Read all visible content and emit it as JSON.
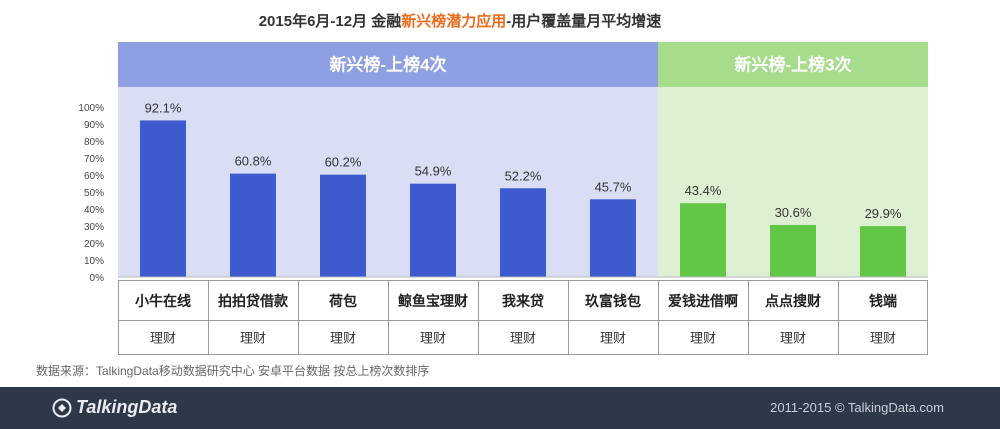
{
  "title": {
    "prefix": "2015年6月-12月  金融",
    "highlight": "新兴榜潜力应用",
    "suffix": "-用户覆盖量月平均增速"
  },
  "chart_data": {
    "type": "bar",
    "title": "2015年6月-12月  金融新兴榜潜力应用-用户覆盖量月平均增速",
    "categories": [
      "小牛在线",
      "拍拍贷借款",
      "荷包",
      "鲸鱼宝理财",
      "我来贷",
      "玖富钱包",
      "爱钱进借啊",
      "点点搜财",
      "钱端"
    ],
    "sub_labels": [
      "理财",
      "理财",
      "理财",
      "理财",
      "理财",
      "理财",
      "理财",
      "理财",
      "理财"
    ],
    "values": [
      92.1,
      60.8,
      60.2,
      54.9,
      52.2,
      45.7,
      43.4,
      30.6,
      29.9
    ],
    "value_labels": [
      "92.1%",
      "60.8%",
      "60.2%",
      "54.9%",
      "52.2%",
      "45.7%",
      "43.4%",
      "30.6%",
      "29.9%"
    ],
    "yticks": [
      0,
      10,
      20,
      30,
      40,
      50,
      60,
      70,
      80,
      90,
      100
    ],
    "ytick_labels": [
      "0%",
      "10%",
      "20%",
      "30%",
      "40%",
      "50%",
      "60%",
      "70%",
      "80%",
      "90%",
      "100%"
    ],
    "ylim": [
      0,
      100
    ],
    "groups": [
      {
        "label": "新兴榜-上榜4次",
        "count": 6,
        "bar_color": "#3d5bcf",
        "header_color": "#8f9fe3",
        "panel_color": "#d9def5"
      },
      {
        "label": "新兴榜-上榜3次",
        "count": 3,
        "bar_color": "#62c746",
        "header_color": "#a6dc8c",
        "panel_color": "#ddf0d2"
      }
    ]
  },
  "source_note": "数据来源：TalkingData移动数据研究中心   安卓平台数据   按总上榜次数排序",
  "footer": {
    "brand": "TalkingData",
    "brand_icon": "talkingdata-logo-icon",
    "copyright": "2011-2015 © TalkingData.com"
  }
}
